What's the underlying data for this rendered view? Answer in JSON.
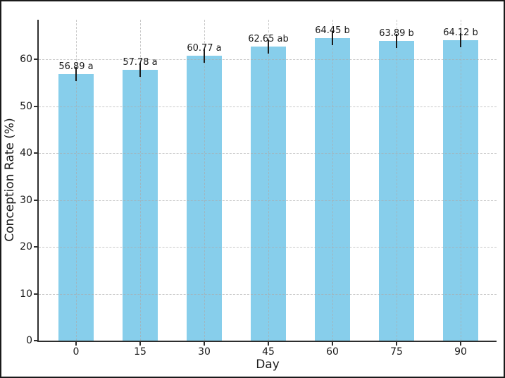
{
  "figure": {
    "background": "#ffffff",
    "border_color": "#1a1a1a"
  },
  "chart_data": {
    "type": "bar",
    "title": "",
    "xlabel": "Day",
    "ylabel": "Conception Rate (%)",
    "categories": [
      "0",
      "15",
      "30",
      "45",
      "60",
      "75",
      "90"
    ],
    "values": [
      56.89,
      57.78,
      60.77,
      62.65,
      64.45,
      63.89,
      64.12
    ],
    "errors": [
      1.5,
      1.5,
      1.5,
      1.5,
      1.5,
      1.5,
      1.5
    ],
    "bar_labels": [
      "56.89 a",
      "57.78 a",
      "60.77 a",
      "62.65 ab",
      "64.45 b",
      "63.89 b",
      "64.12 b"
    ],
    "y_ticks": [
      0,
      10,
      20,
      30,
      40,
      50,
      60
    ],
    "ylim": [
      0,
      68.4
    ],
    "grid": "dashed",
    "legend_position": "none",
    "bar_color": "#87CEEB",
    "error_color": "#1a1a1a",
    "axis_color": "#2e2e2e",
    "grid_color": "#ababab",
    "text_color": "#1a1a1a"
  }
}
